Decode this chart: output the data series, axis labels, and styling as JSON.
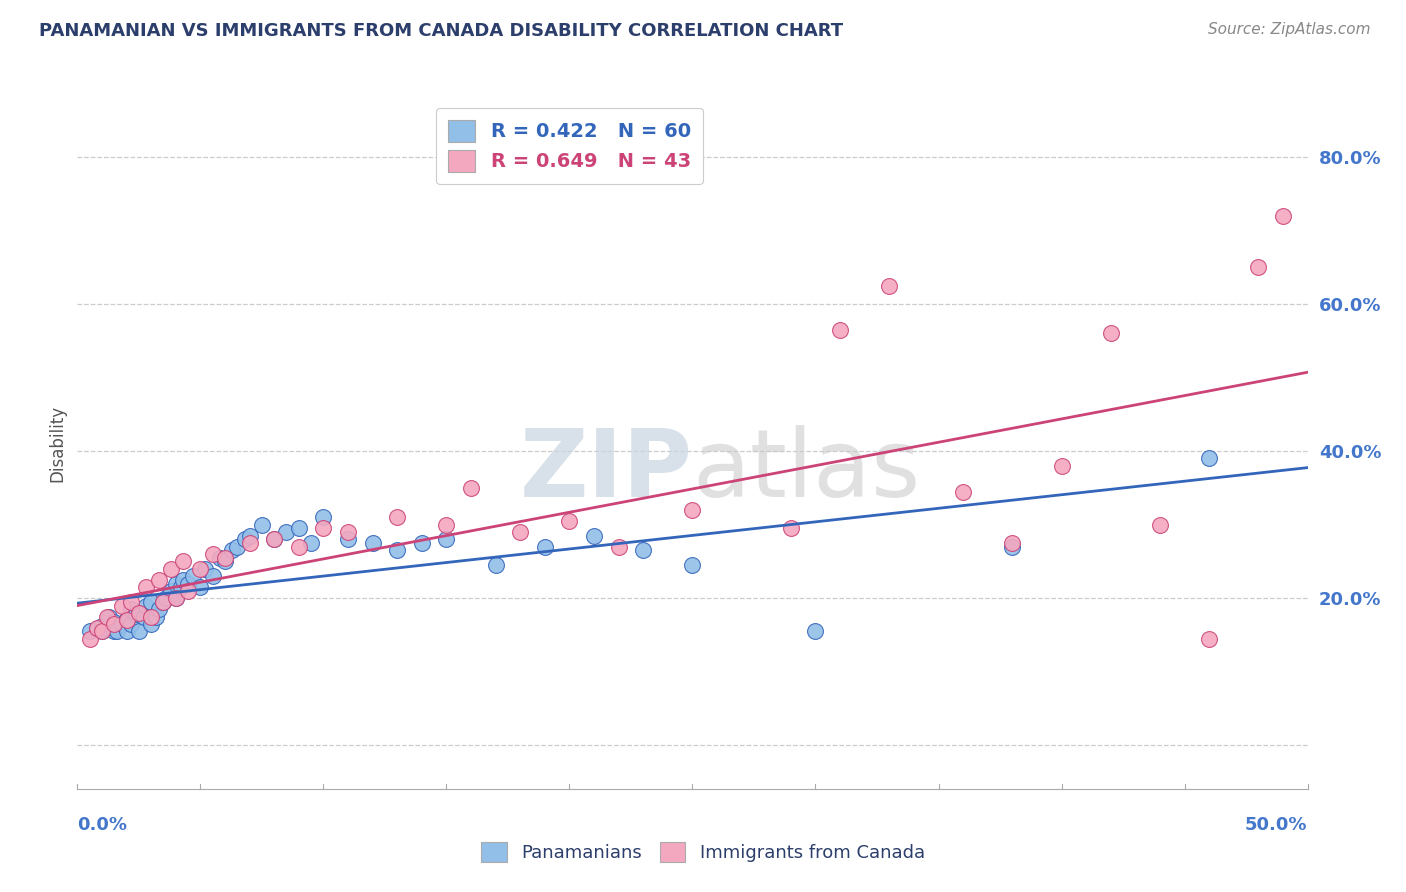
{
  "title": "PANAMANIAN VS IMMIGRANTS FROM CANADA DISABILITY CORRELATION CHART",
  "source_text": "Source: ZipAtlas.com",
  "ylabel": "Disability",
  "xmin": 0.0,
  "xmax": 0.5,
  "ymin": -0.06,
  "ymax": 0.88,
  "yticks": [
    0.0,
    0.2,
    0.4,
    0.6,
    0.8
  ],
  "ytick_labels": [
    "",
    "20.0%",
    "40.0%",
    "60.0%",
    "80.0%"
  ],
  "legend1_label": "R = 0.422   N = 60",
  "legend2_label": "R = 0.649   N = 43",
  "blue_color": "#92bfe8",
  "pink_color": "#f4a8bf",
  "blue_line_color": "#3366bb",
  "pink_line_color": "#cc4477",
  "title_color": "#2c3e6b",
  "axis_label_color": "#4477cc",
  "grid_color": "#cccccc",
  "background_color": "#ffffff",
  "blue_scatter_x": [
    0.005,
    0.008,
    0.01,
    0.01,
    0.012,
    0.013,
    0.015,
    0.015,
    0.016,
    0.018,
    0.02,
    0.02,
    0.022,
    0.022,
    0.024,
    0.025,
    0.025,
    0.027,
    0.028,
    0.03,
    0.03,
    0.032,
    0.033,
    0.035,
    0.036,
    0.038,
    0.04,
    0.04,
    0.042,
    0.043,
    0.045,
    0.047,
    0.05,
    0.052,
    0.055,
    0.058,
    0.06,
    0.063,
    0.065,
    0.068,
    0.07,
    0.075,
    0.08,
    0.085,
    0.09,
    0.095,
    0.1,
    0.11,
    0.12,
    0.13,
    0.14,
    0.15,
    0.17,
    0.19,
    0.21,
    0.23,
    0.25,
    0.3,
    0.38,
    0.46
  ],
  "blue_scatter_y": [
    0.155,
    0.158,
    0.155,
    0.162,
    0.16,
    0.175,
    0.155,
    0.168,
    0.155,
    0.165,
    0.155,
    0.172,
    0.165,
    0.185,
    0.178,
    0.155,
    0.18,
    0.175,
    0.19,
    0.165,
    0.195,
    0.175,
    0.185,
    0.195,
    0.2,
    0.21,
    0.2,
    0.22,
    0.215,
    0.225,
    0.22,
    0.23,
    0.215,
    0.24,
    0.23,
    0.255,
    0.25,
    0.265,
    0.27,
    0.28,
    0.285,
    0.3,
    0.28,
    0.29,
    0.295,
    0.275,
    0.31,
    0.28,
    0.275,
    0.265,
    0.275,
    0.28,
    0.245,
    0.27,
    0.285,
    0.265,
    0.245,
    0.155,
    0.27,
    0.39
  ],
  "pink_scatter_x": [
    0.005,
    0.008,
    0.01,
    0.012,
    0.015,
    0.018,
    0.02,
    0.022,
    0.025,
    0.028,
    0.03,
    0.033,
    0.035,
    0.038,
    0.04,
    0.043,
    0.045,
    0.05,
    0.055,
    0.06,
    0.07,
    0.08,
    0.09,
    0.1,
    0.11,
    0.13,
    0.15,
    0.16,
    0.18,
    0.2,
    0.22,
    0.25,
    0.29,
    0.31,
    0.33,
    0.36,
    0.38,
    0.4,
    0.42,
    0.44,
    0.46,
    0.48,
    0.49
  ],
  "pink_scatter_y": [
    0.145,
    0.16,
    0.155,
    0.175,
    0.165,
    0.19,
    0.17,
    0.195,
    0.18,
    0.215,
    0.175,
    0.225,
    0.195,
    0.24,
    0.2,
    0.25,
    0.21,
    0.24,
    0.26,
    0.255,
    0.275,
    0.28,
    0.27,
    0.295,
    0.29,
    0.31,
    0.3,
    0.35,
    0.29,
    0.305,
    0.27,
    0.32,
    0.295,
    0.565,
    0.625,
    0.345,
    0.275,
    0.38,
    0.56,
    0.3,
    0.145,
    0.65,
    0.72
  ],
  "blue_R": 0.422,
  "blue_N": 60,
  "pink_R": 0.649,
  "pink_N": 43
}
